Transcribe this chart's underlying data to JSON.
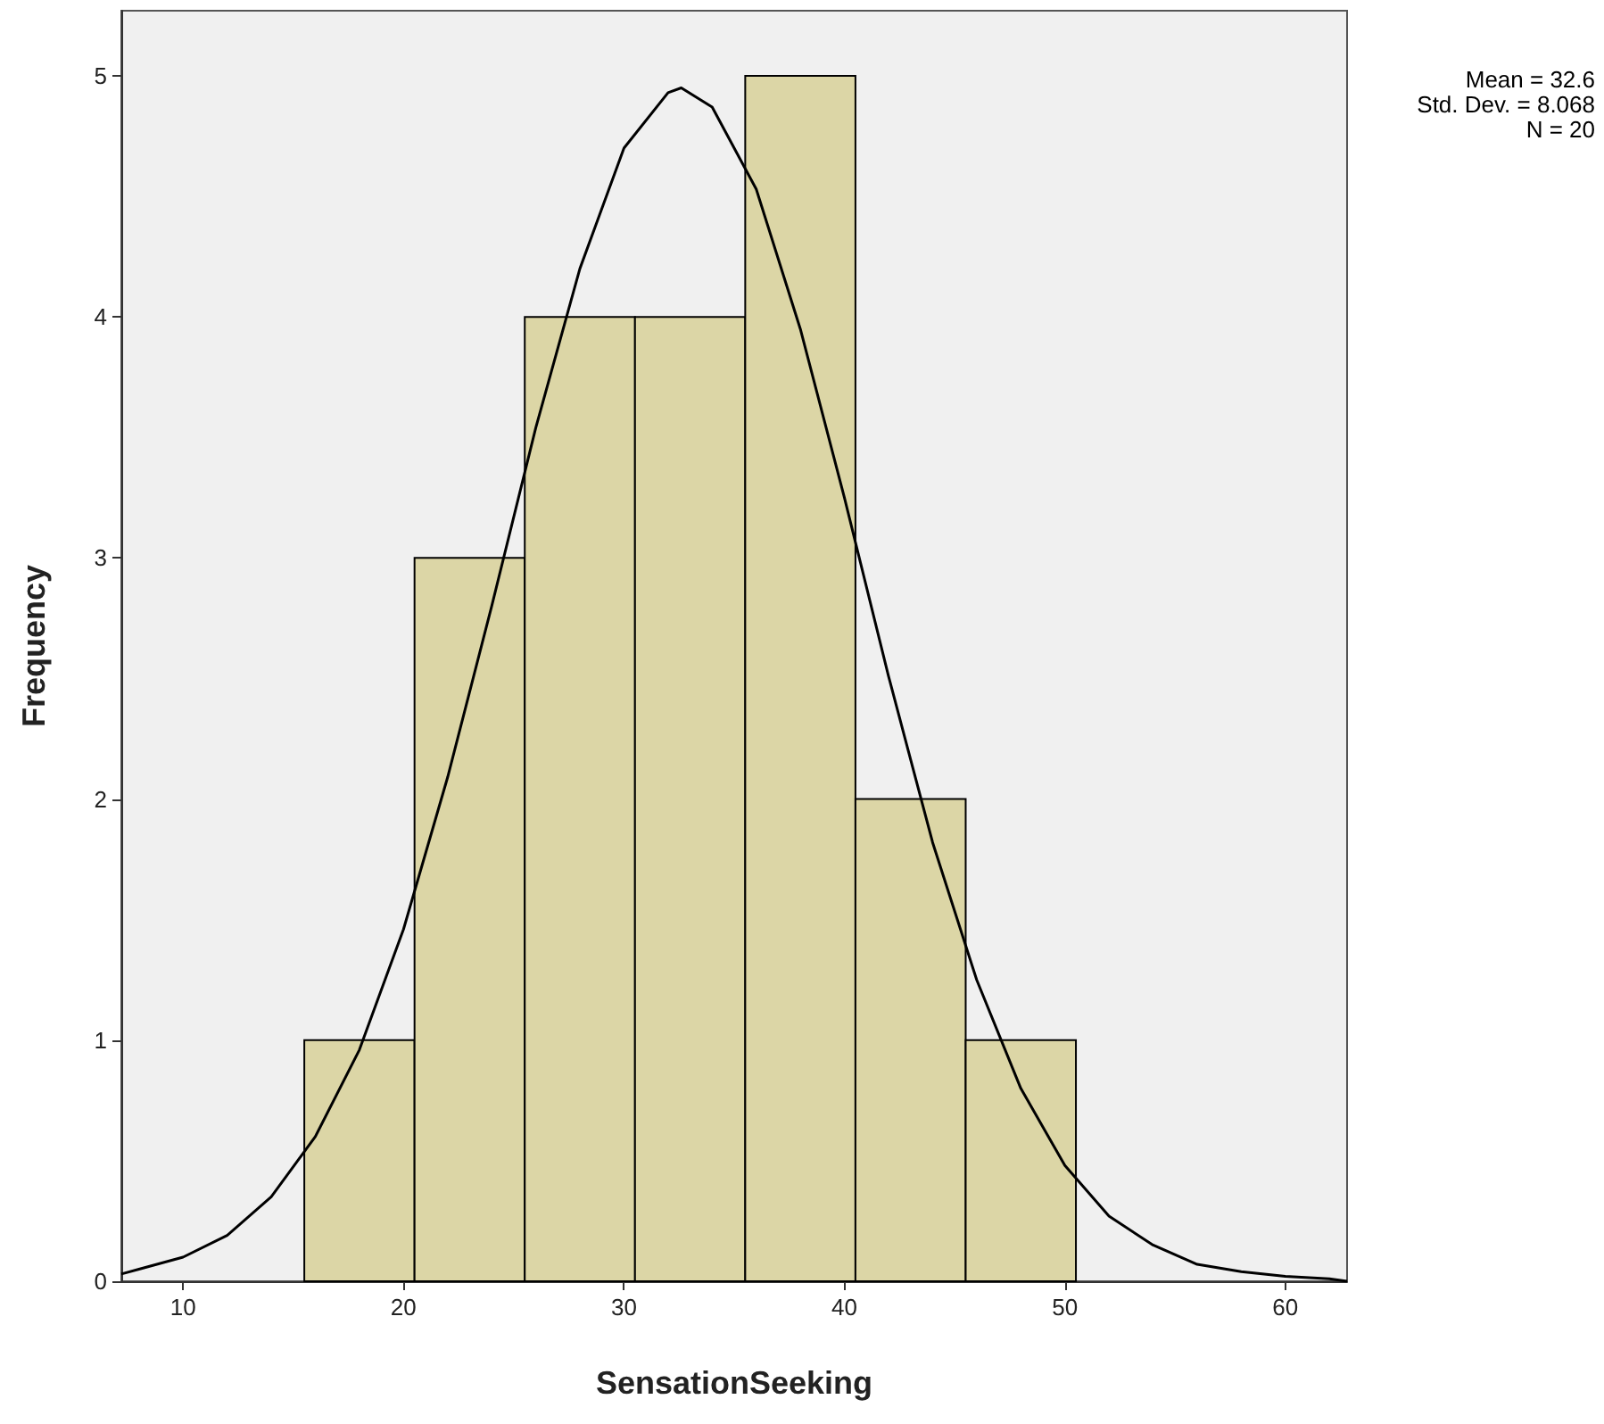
{
  "chart_data": {
    "type": "histogram",
    "xlabel": "SensationSeeking",
    "ylabel": "Frequency",
    "xlim": [
      7.2,
      62.8
    ],
    "xticks": [
      10,
      20,
      30,
      40,
      50,
      60
    ],
    "ylim": [
      0,
      5.27
    ],
    "yticks": [
      0,
      1,
      2,
      3,
      4,
      5
    ],
    "grid": false,
    "marker": "none",
    "annotations": [
      "Mean = 32.6",
      "Std. Dev. = 8.068",
      "N = 20"
    ],
    "series": [
      {
        "color": "#dcd6a6",
        "bins": [
          15.5,
          20.5,
          25.5,
          30.5,
          35.5,
          40.5,
          45.5,
          50.5
        ],
        "values": [
          1,
          3,
          4,
          4,
          5,
          2,
          1
        ]
      },
      {
        "type": "line",
        "color": "#000000",
        "x": [
          7.2,
          8,
          10,
          12,
          14,
          16,
          18,
          20,
          22,
          24,
          26,
          28,
          30,
          32,
          32.6,
          34,
          36,
          38,
          40,
          42,
          44,
          46,
          48,
          50,
          52,
          54,
          56,
          58,
          60,
          62,
          62.8
        ],
        "values": [
          0.03,
          0.05,
          0.1,
          0.19,
          0.35,
          0.6,
          0.96,
          1.46,
          2.09,
          2.8,
          3.54,
          4.2,
          4.7,
          4.93,
          4.95,
          4.87,
          4.53,
          3.95,
          3.25,
          2.51,
          1.82,
          1.25,
          0.8,
          0.48,
          0.27,
          0.15,
          0.07,
          0.04,
          0.02,
          0.01,
          0
        ]
      }
    ]
  }
}
